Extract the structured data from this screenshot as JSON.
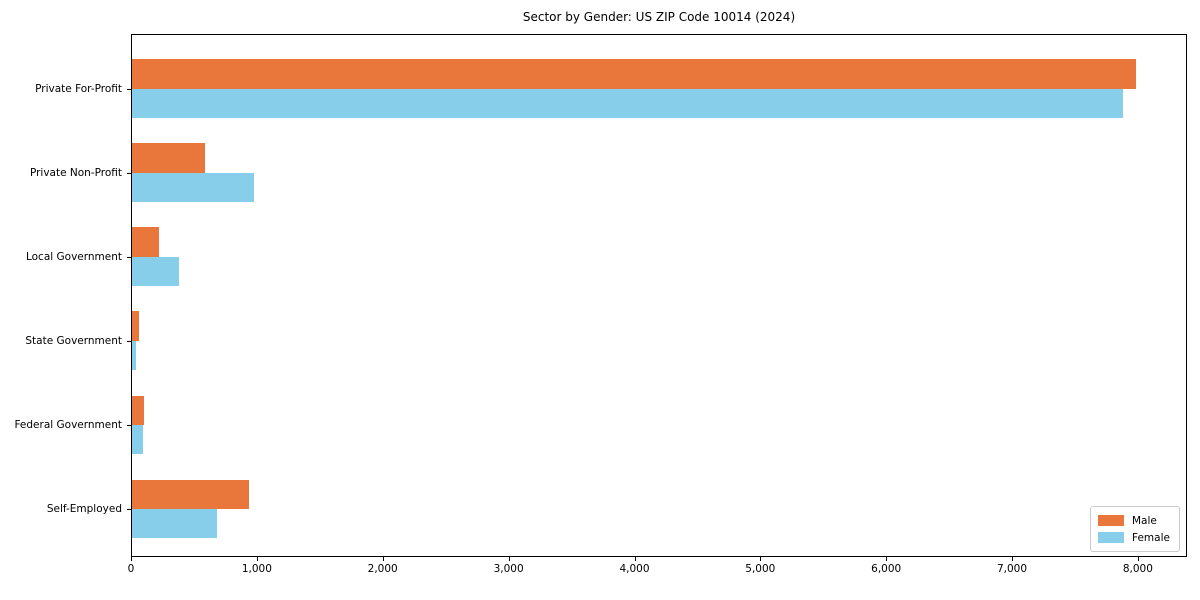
{
  "chart_data": {
    "type": "bar",
    "orientation": "horizontal",
    "title": "Sector by Gender: US ZIP Code 10014 (2024)",
    "categories": [
      "Private For-Profit",
      "Private Non-Profit",
      "Local Government",
      "State Government",
      "Federal Government",
      "Self-Employed"
    ],
    "series": [
      {
        "name": "Male",
        "color": "#e9773b",
        "values": [
          7980,
          580,
          215,
          55,
          95,
          930
        ]
      },
      {
        "name": "Female",
        "color": "#87ceeb",
        "values": [
          7870,
          970,
          370,
          30,
          85,
          675
        ]
      }
    ],
    "xlim": [
      0,
      8390
    ],
    "xticks": [
      0,
      1000,
      2000,
      3000,
      4000,
      5000,
      6000,
      7000,
      8000
    ],
    "xtick_labels": [
      "0",
      "1,000",
      "2,000",
      "3,000",
      "4,000",
      "5,000",
      "6,000",
      "7,000",
      "8,000"
    ],
    "legend": {
      "position": "lower right"
    },
    "grid": false,
    "colors": {
      "spine": "#000000",
      "background": "#ffffff"
    }
  }
}
